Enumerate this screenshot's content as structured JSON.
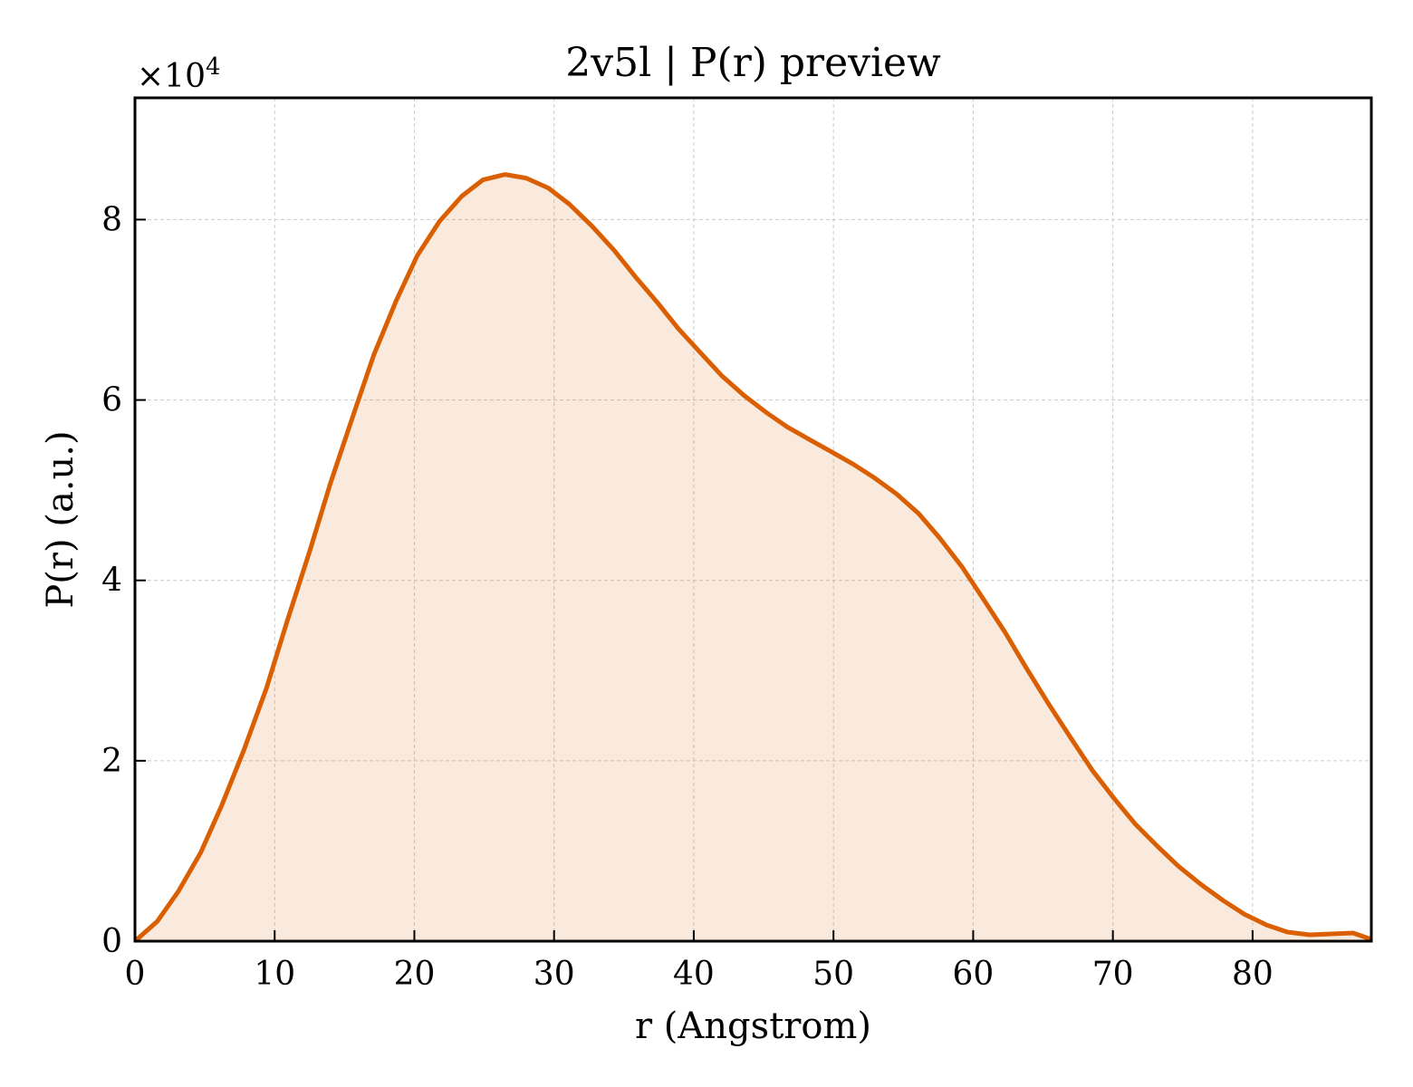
{
  "chart_data": {
    "type": "area",
    "title": "2v5l | P(r) preview",
    "xlabel": "r (Angstrom)",
    "ylabel": "P(r) (a.u.)",
    "y_multiplier": "×10",
    "y_multiplier_exponent": "4",
    "xlim": [
      0,
      88.5
    ],
    "ylim": [
      0,
      9.35
    ],
    "xticks": [
      0,
      10,
      20,
      30,
      40,
      50,
      60,
      70,
      80
    ],
    "yticks": [
      0,
      2,
      4,
      6,
      8
    ],
    "grid": true,
    "colors": {
      "line": "#d95f02",
      "fill": "#d95f02",
      "grid": "#cccccc"
    },
    "series": [
      {
        "x": [
          0,
          1.6,
          3.1,
          4.7,
          6.2,
          7.8,
          9.4,
          10.9,
          12.5,
          14.0,
          15.6,
          17.1,
          18.7,
          20.2,
          21.8,
          23.4,
          24.9,
          26.5,
          28.0,
          29.6,
          31.1,
          32.7,
          34.3,
          35.8,
          37.4,
          38.9,
          40.5,
          42.0,
          43.6,
          45.2,
          46.7,
          48.3,
          49.8,
          51.4,
          52.9,
          54.5,
          56.1,
          57.6,
          59.2,
          60.7,
          62.3,
          63.8,
          65.4,
          67.0,
          68.5,
          70.1,
          71.6,
          73.2,
          74.7,
          76.3,
          77.9,
          79.4,
          81.0,
          82.5,
          84.1,
          85.6,
          87.2,
          88.5
        ],
        "y": [
          0,
          0.22,
          0.55,
          0.98,
          1.5,
          2.12,
          2.8,
          3.55,
          4.32,
          5.08,
          5.82,
          6.5,
          7.1,
          7.6,
          7.98,
          8.26,
          8.44,
          8.5,
          8.46,
          8.35,
          8.17,
          7.93,
          7.66,
          7.37,
          7.08,
          6.79,
          6.52,
          6.27,
          6.05,
          5.86,
          5.7,
          5.56,
          5.43,
          5.29,
          5.14,
          4.96,
          4.74,
          4.47,
          4.15,
          3.8,
          3.42,
          3.03,
          2.63,
          2.25,
          1.9,
          1.58,
          1.3,
          1.05,
          0.83,
          0.63,
          0.45,
          0.3,
          0.18,
          0.1,
          0.07,
          0.08,
          0.09,
          0.02
        ]
      }
    ]
  }
}
